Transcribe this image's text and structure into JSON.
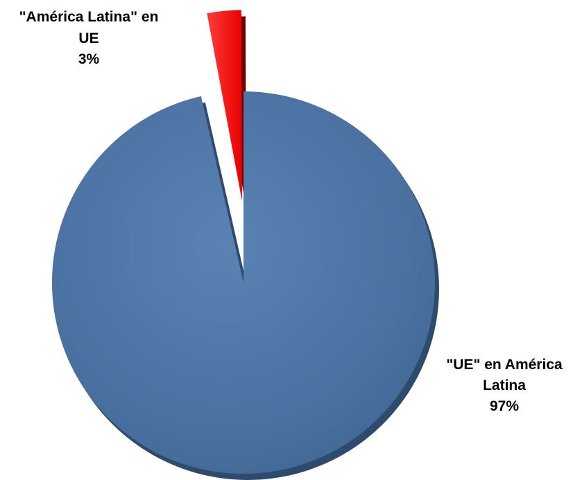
{
  "chart_data": {
    "type": "pie",
    "title": "",
    "start_angle_deg": 0,
    "direction": "clockwise",
    "slices": [
      {
        "label_lines": [
          "\"UE\" en América",
          "Latina"
        ],
        "pct_label": "97%",
        "value": 97,
        "color": "#4a71a0",
        "shadow": "#2e4b6e",
        "exploded": false
      },
      {
        "label_lines": [
          "\"América Latina\" en",
          "UE"
        ],
        "pct_label": "3%",
        "value": 3,
        "color": "#ff1a1a",
        "shadow": "#6a0000",
        "exploded": true
      }
    ]
  }
}
